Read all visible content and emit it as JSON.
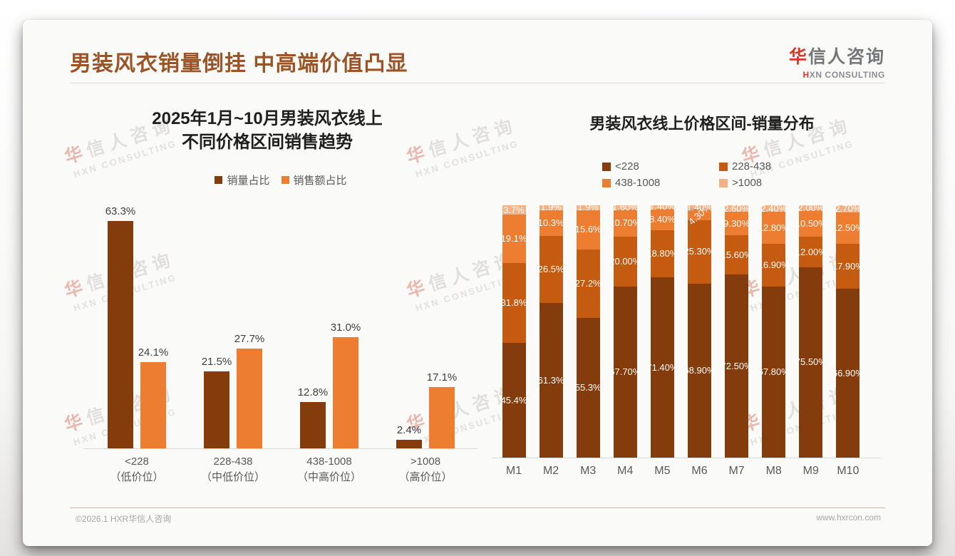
{
  "header": {
    "title": "男装风衣销量倒挂 中高端价值凸显",
    "logo": {
      "cn_accent": "华",
      "cn_rest": "信人咨询",
      "en_accent": "H",
      "en_rest": "XN CONSULTING"
    }
  },
  "watermark": {
    "cn_accent": "华",
    "cn_rest": "信人咨询",
    "en": "HXN CONSULTING"
  },
  "footer": {
    "copyright": "©2026.1 HXR华信人咨询",
    "website": "www.hxrcon.com"
  },
  "colors": {
    "page_title": "#9c5427",
    "logo_accent": "#d8372a",
    "bar_dark_brown": "#843c0c",
    "bar_dark_orange": "#c55a11",
    "bar_orange": "#ed7d31",
    "bar_light_orange": "#f4b183",
    "axis_line": "#d9d9d9",
    "footer_rule": "#cdbba8"
  },
  "chart_data": [
    {
      "type": "bar",
      "title_lines": [
        "2025年1月~10月男装风衣线上",
        "不同价格区间销售趋势"
      ],
      "categories": [
        {
          "range": "<228",
          "tier": "（低价位）"
        },
        {
          "range": "228-438",
          "tier": "（中低价位）"
        },
        {
          "range": "438-1008",
          "tier": "（中高价位）"
        },
        {
          "range": ">1008",
          "tier": "（高价位）"
        }
      ],
      "series": [
        {
          "name": "销量占比",
          "color": "#843c0c",
          "values": [
            63.3,
            21.5,
            12.8,
            2.4
          ],
          "labels": [
            "63.3%",
            "21.5%",
            "12.8%",
            "2.4%"
          ]
        },
        {
          "name": "销售额占比",
          "color": "#ed7d31",
          "values": [
            24.1,
            27.7,
            31.0,
            17.1
          ],
          "labels": [
            "24.1%",
            "27.7%",
            "31.0%",
            "17.1%"
          ]
        }
      ],
      "ylabel": "",
      "ylim": [
        0,
        70
      ],
      "grid": false,
      "legend_position": "top"
    },
    {
      "type": "stacked-bar-100",
      "title": "男装风衣线上价格区间-销量分布",
      "categories": [
        "M1",
        "M2",
        "M3",
        "M4",
        "M5",
        "M6",
        "M7",
        "M8",
        "M9",
        "M10"
      ],
      "series": [
        {
          "name": "<228",
          "color": "#843c0c",
          "values": [
            45.4,
            61.3,
            55.3,
            67.7,
            71.4,
            68.9,
            72.5,
            67.8,
            75.5,
            66.9
          ],
          "labels": [
            "45.4%",
            "61.3%",
            "55.3%",
            "67.70%",
            "71.40%",
            "68.90%",
            "72.50%",
            "67.80%",
            "75.50%",
            "66.90%"
          ]
        },
        {
          "name": "228-438",
          "color": "#c55a11",
          "values": [
            31.8,
            26.5,
            27.2,
            20.0,
            18.8,
            25.3,
            15.6,
            16.9,
            12.0,
            17.9
          ],
          "labels": [
            "31.8%",
            "26.5%",
            "27.2%",
            "20.00%",
            "18.80%",
            "25.30%",
            "15.60%",
            "16.90%",
            "12.00%",
            "17.90%"
          ]
        },
        {
          "name": "438-1008",
          "color": "#ed7d31",
          "values": [
            19.1,
            10.3,
            15.6,
            10.7,
            8.4,
            4.3,
            9.3,
            12.8,
            10.5,
            12.5
          ],
          "labels": [
            "19.1%",
            "10.3%",
            "15.6%",
            "10.70%",
            "8.40%",
            "4.30%",
            "9.30%",
            "12.80%",
            "10.50%",
            "12.50%"
          ]
        },
        {
          "name": ">1008",
          "color": "#f4b183",
          "values": [
            3.7,
            1.9,
            1.9,
            1.6,
            1.4,
            1.4,
            2.6,
            2.4,
            2.0,
            2.7
          ],
          "labels": [
            "3.7%",
            "1.9%",
            "1.9%",
            "1.60%",
            "1.40%",
            "1.40%",
            "2.60%",
            "2.40%",
            "2.00%",
            "2.70%"
          ]
        }
      ],
      "rotated_labels": [
        {
          "category": "M6",
          "series": "438-1008",
          "angle": -42
        }
      ],
      "ylim": [
        0,
        100
      ],
      "grid": false,
      "legend_position": "top"
    }
  ]
}
